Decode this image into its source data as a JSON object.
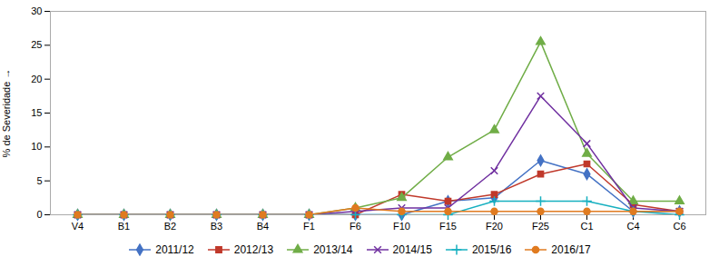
{
  "chart_data": {
    "type": "line",
    "categories": [
      "V4",
      "B1",
      "B2",
      "B3",
      "B4",
      "F1",
      "F6",
      "F10",
      "F15",
      "F20",
      "F25",
      "C1",
      "C4",
      "C6"
    ],
    "series": [
      {
        "name": "2011/12",
        "color": "#4472C4",
        "marker": "diamond",
        "values": [
          0,
          0,
          0,
          0,
          0,
          0,
          0,
          0,
          2,
          2.5,
          8,
          6,
          0.5,
          0.5
        ]
      },
      {
        "name": "2012/13",
        "color": "#C0392B",
        "marker": "square",
        "values": [
          0,
          0,
          0,
          0,
          0,
          0,
          0,
          3,
          2,
          3,
          6,
          7.5,
          1.5,
          0.5
        ]
      },
      {
        "name": "2013/14",
        "color": "#70AD47",
        "marker": "triangle",
        "values": [
          0,
          0,
          0,
          0,
          0,
          0,
          1,
          2.5,
          8.5,
          12.5,
          25.5,
          9,
          2,
          2
        ]
      },
      {
        "name": "2014/15",
        "color": "#7030A0",
        "marker": "times",
        "values": [
          0,
          0,
          0,
          0,
          0,
          0,
          0.5,
          1,
          1,
          6.5,
          17.5,
          10.5,
          1,
          0.5
        ]
      },
      {
        "name": "2015/16",
        "color": "#17B0C0",
        "marker": "plus",
        "values": [
          0,
          0,
          0,
          0,
          0,
          0,
          0,
          0,
          0,
          2,
          2,
          2,
          0.5,
          0
        ]
      },
      {
        "name": "2016/17",
        "color": "#E07B20",
        "marker": "circle",
        "values": [
          0,
          0,
          0,
          0,
          0,
          0,
          1,
          0.5,
          0.5,
          0.5,
          0.5,
          0.5,
          0.5,
          0.5
        ]
      }
    ],
    "ylabel": "% de Severidade",
    "ylim": [
      0,
      30
    ],
    "yticks": [
      0,
      5,
      10,
      15,
      20,
      25,
      30
    ],
    "grid": false,
    "legend": "bottom"
  }
}
